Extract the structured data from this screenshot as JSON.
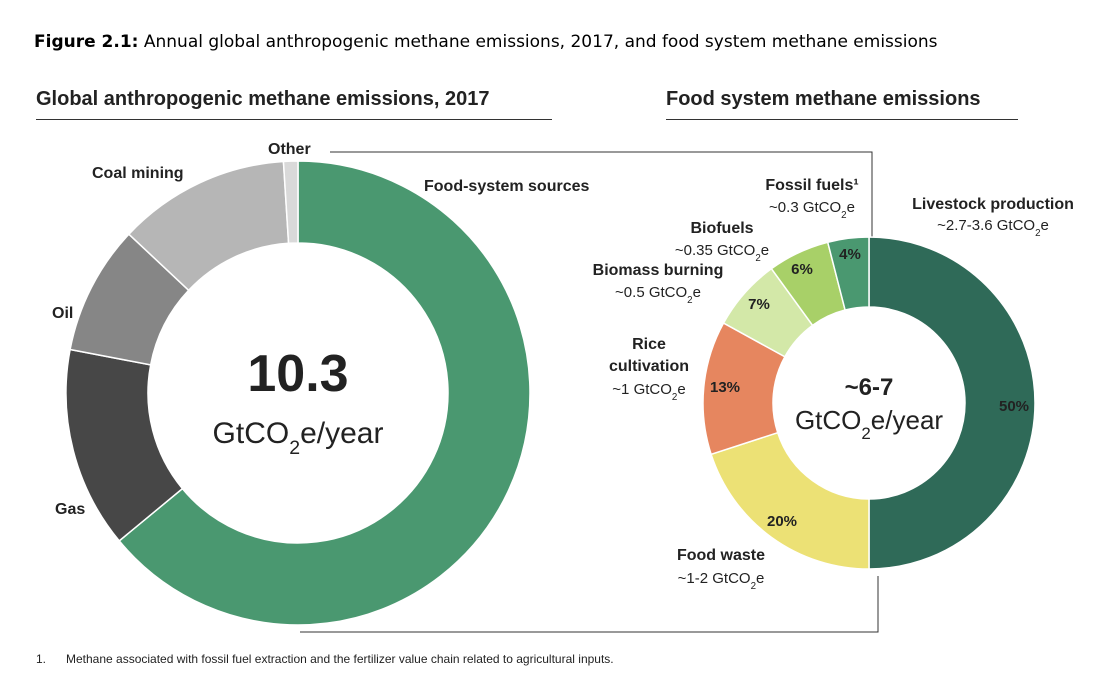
{
  "caption": {
    "label": "Figure 2.1:",
    "text": " Annual global anthropogenic methane emissions, 2017, and food system methane emissions"
  },
  "footnote": {
    "number": "1.",
    "text": "Methane associated with fossil fuel extraction and the fertilizer value chain related to agricultural inputs."
  },
  "chart_data": [
    {
      "type": "pie",
      "variant": "donut",
      "title": "Global anthropogenic methane emissions, 2017",
      "center_value": "10.3",
      "center_unit": "GtCO₂e/year",
      "categories": [
        "Food-system sources",
        "Gas",
        "Oil",
        "Coal mining",
        "Other"
      ],
      "values": [
        64,
        14,
        9,
        12,
        1
      ],
      "colors": [
        "#4a9870",
        "#474747",
        "#868686",
        "#b6b6b6",
        "#d9d9d9"
      ]
    },
    {
      "type": "pie",
      "variant": "donut",
      "title": "Food system methane emissions",
      "center_value": "~6-7",
      "center_unit": "GtCO₂e/year",
      "categories": [
        "Livestock production",
        "Food waste",
        "Rice cultivation",
        "Biomass burning",
        "Biofuels",
        "Fossil fuels¹"
      ],
      "values": [
        50,
        20,
        13,
        7,
        6,
        4
      ],
      "value_labels": [
        "50%",
        "20%",
        "13%",
        "7%",
        "6%",
        "4%"
      ],
      "annotations": [
        "~2.7-3.6 GtCO₂e",
        "~1-2 GtCO₂e",
        "~1 GtCO₂e",
        "~0.5 GtCO₂e",
        "~0.35 GtCO₂e",
        "~0.3 GtCO₂e"
      ],
      "colors": [
        "#2f6a58",
        "#ece175",
        "#e6865f",
        "#d3e8a8",
        "#a8d068",
        "#4a9870"
      ]
    }
  ]
}
